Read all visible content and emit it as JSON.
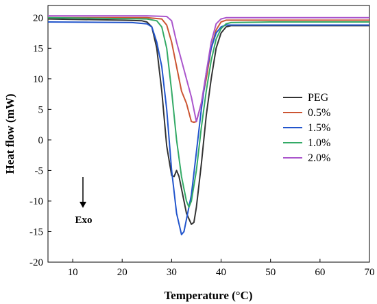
{
  "chart_data": {
    "type": "line",
    "xlabel": "Temperature (°C)",
    "ylabel": "Heat flow (mW)",
    "xlim": [
      5,
      70
    ],
    "ylim": [
      -20,
      22
    ],
    "xticks": [
      10,
      20,
      30,
      40,
      50,
      60,
      70
    ],
    "yticks": [
      -20,
      -15,
      -10,
      -5,
      0,
      5,
      10,
      15,
      20
    ],
    "grid": false,
    "legend_position": "right",
    "annotation": "Exo",
    "series": [
      {
        "name": "PEG",
        "color": "#333333",
        "points": [
          [
            5,
            19.8
          ],
          [
            20,
            19.6
          ],
          [
            24,
            19.5
          ],
          [
            25,
            19.3
          ],
          [
            26,
            18.5
          ],
          [
            27,
            15
          ],
          [
            28,
            8
          ],
          [
            29,
            -1
          ],
          [
            30,
            -5.8
          ],
          [
            30.5,
            -6
          ],
          [
            31,
            -5
          ],
          [
            31.5,
            -6
          ],
          [
            32,
            -8
          ],
          [
            33,
            -12
          ],
          [
            34,
            -13.8
          ],
          [
            34.5,
            -13.5
          ],
          [
            35,
            -11
          ],
          [
            36,
            -4
          ],
          [
            37,
            4
          ],
          [
            38,
            10
          ],
          [
            39,
            15
          ],
          [
            40,
            17.5
          ],
          [
            41,
            18.5
          ],
          [
            42,
            18.7
          ],
          [
            50,
            18.7
          ],
          [
            70,
            18.7
          ]
        ]
      },
      {
        "name": "0.5%",
        "color": "#cc5533",
        "points": [
          [
            5,
            20
          ],
          [
            25,
            20
          ],
          [
            28,
            19.8
          ],
          [
            29,
            18.8
          ],
          [
            30,
            16
          ],
          [
            31,
            12
          ],
          [
            32,
            8
          ],
          [
            33,
            6
          ],
          [
            34,
            3
          ],
          [
            34.5,
            2.9
          ],
          [
            35,
            3
          ],
          [
            36,
            6
          ],
          [
            37,
            10
          ],
          [
            38,
            15
          ],
          [
            39,
            18
          ],
          [
            40,
            19.3
          ],
          [
            41,
            19.6
          ],
          [
            50,
            19.6
          ],
          [
            70,
            19.6
          ]
        ]
      },
      {
        "name": "1.5%",
        "color": "#2255cc",
        "points": [
          [
            5,
            19.3
          ],
          [
            22,
            19.2
          ],
          [
            25,
            19
          ],
          [
            26,
            18.5
          ],
          [
            27,
            16
          ],
          [
            28,
            12
          ],
          [
            29,
            5
          ],
          [
            30,
            -5
          ],
          [
            31,
            -12
          ],
          [
            32,
            -15.5
          ],
          [
            32.5,
            -15
          ],
          [
            33,
            -13
          ],
          [
            34,
            -9
          ],
          [
            35,
            -2
          ],
          [
            36,
            5
          ],
          [
            37,
            11
          ],
          [
            38,
            15
          ],
          [
            39,
            17.5
          ],
          [
            40,
            18.5
          ],
          [
            41,
            18.8
          ],
          [
            50,
            18.8
          ],
          [
            70,
            18.8
          ]
        ]
      },
      {
        "name": "1.0%",
        "color": "#33aa66",
        "points": [
          [
            5,
            20
          ],
          [
            25,
            19.8
          ],
          [
            27,
            19.5
          ],
          [
            28,
            18.5
          ],
          [
            29,
            15
          ],
          [
            30,
            8
          ],
          [
            31,
            0
          ],
          [
            32,
            -6
          ],
          [
            33,
            -10
          ],
          [
            33.5,
            -11
          ],
          [
            34,
            -10
          ],
          [
            35,
            -5
          ],
          [
            36,
            2
          ],
          [
            37,
            8
          ],
          [
            38,
            13
          ],
          [
            39,
            16.5
          ],
          [
            40,
            18.2
          ],
          [
            41,
            19
          ],
          [
            42,
            19.2
          ],
          [
            50,
            19.3
          ],
          [
            70,
            19.3
          ]
        ]
      },
      {
        "name": "2.0%",
        "color": "#aa55cc",
        "points": [
          [
            5,
            20.3
          ],
          [
            25,
            20.3
          ],
          [
            29,
            20.2
          ],
          [
            30,
            19.5
          ],
          [
            31,
            16
          ],
          [
            32,
            13
          ],
          [
            33,
            10
          ],
          [
            34,
            7
          ],
          [
            35,
            3
          ],
          [
            36,
            6
          ],
          [
            37,
            11
          ],
          [
            38,
            16
          ],
          [
            39,
            19
          ],
          [
            40,
            19.8
          ],
          [
            41,
            20
          ],
          [
            50,
            20
          ],
          [
            70,
            20
          ]
        ]
      }
    ]
  }
}
